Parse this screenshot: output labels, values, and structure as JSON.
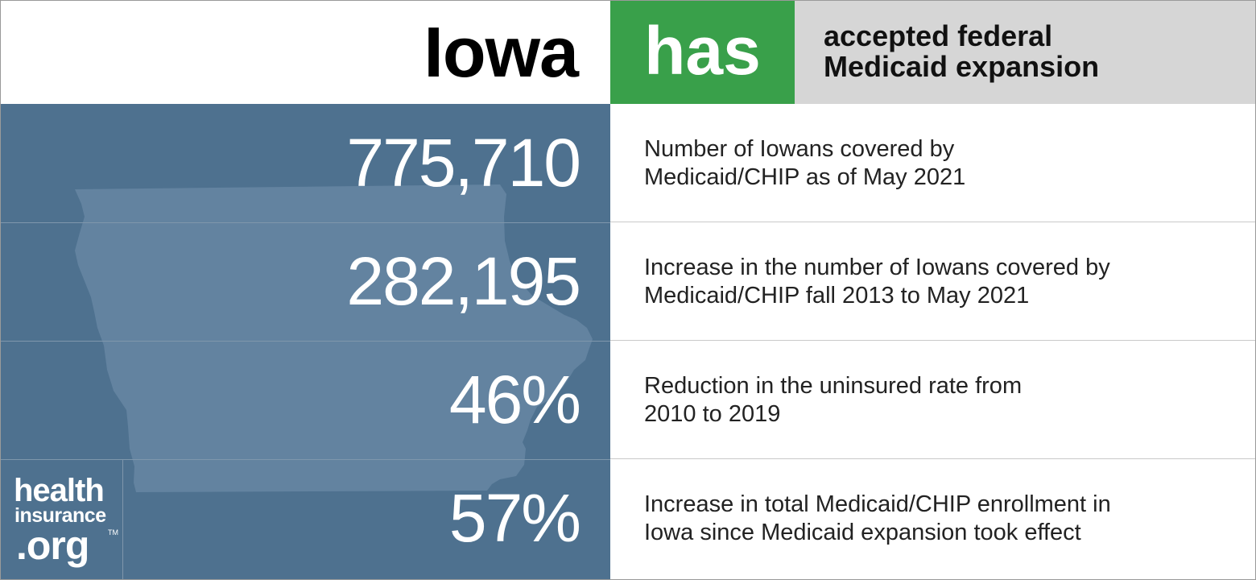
{
  "header": {
    "state": "Iowa",
    "status": "has",
    "description_lines": [
      "accepted federal",
      "Medicaid expansion"
    ]
  },
  "stats": [
    {
      "value": "775,710",
      "lines": [
        "Number of Iowans covered by",
        "Medicaid/CHIP as of May 2021"
      ]
    },
    {
      "value": "282,195",
      "lines": [
        "Increase in the number of Iowans covered by",
        "Medicaid/CHIP fall 2013 to May 2021"
      ]
    },
    {
      "value": "46%",
      "lines": [
        "Reduction in the uninsured rate from",
        "2010 to 2019"
      ]
    },
    {
      "value": "57%",
      "lines": [
        "Increase in total Medicaid/CHIP enrollment in",
        "Iowa since Medicaid expansion took effect"
      ]
    }
  ],
  "logo": {
    "line1": "health",
    "line2": "insurance",
    "line3": ".org",
    "trademark": "TM"
  },
  "colors": {
    "status_green": "#39a04a",
    "panel_blue": "#4e718f",
    "map_blue": "#6383a0",
    "description_gray": "#d6d6d6"
  },
  "icons": {
    "map": "iowa-state-outline-icon"
  }
}
